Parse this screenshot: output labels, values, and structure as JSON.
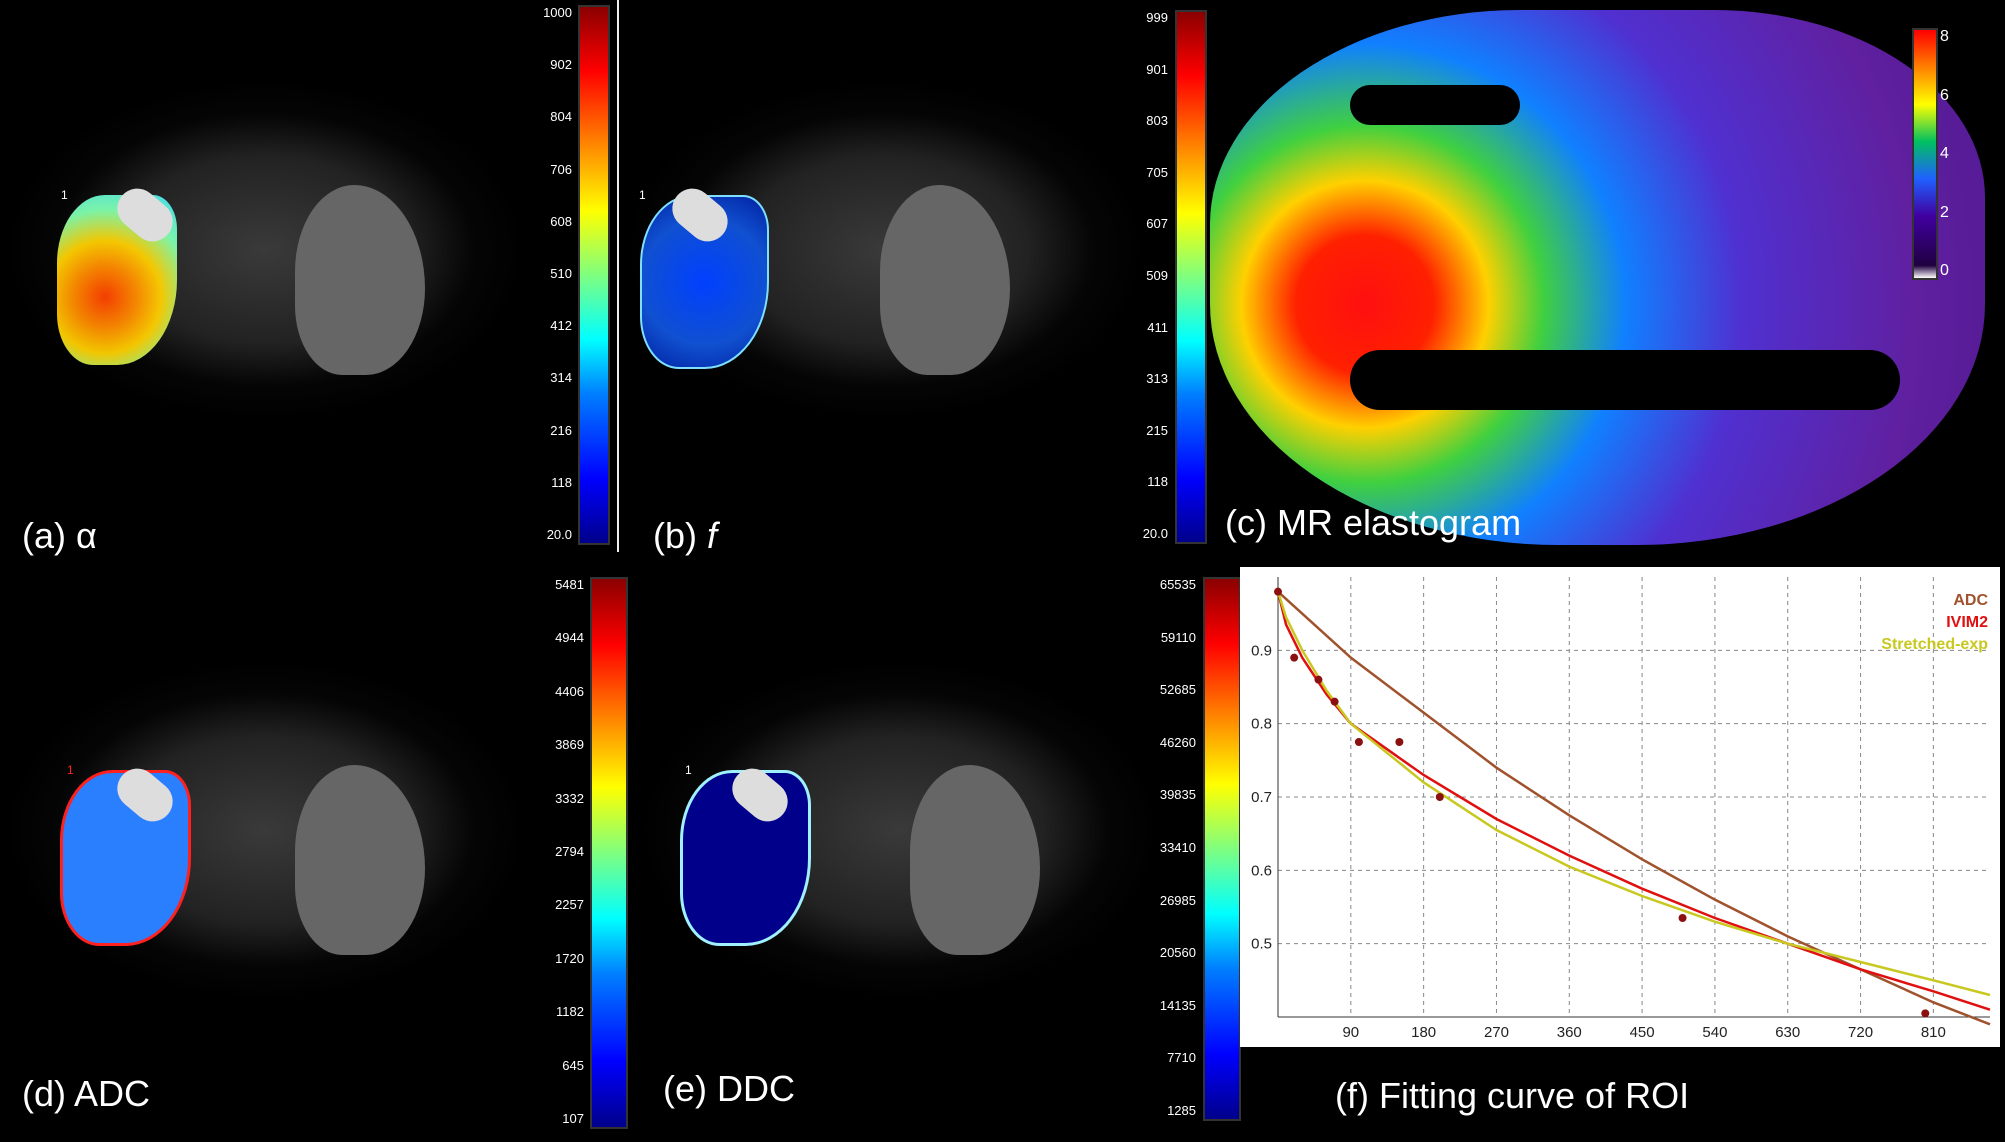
{
  "labels": {
    "a": "(a) α",
    "b_prefix": "(b) ",
    "b_italic": "f",
    "c": "(c) MR elastogram",
    "d": "(d) ADC",
    "e": "(e) DDC",
    "f": "(f) Fitting curve of ROI"
  },
  "roi_markers": {
    "a": "1",
    "b": "1",
    "d": "1",
    "e": "1"
  },
  "colorbars": {
    "a": [
      "1000",
      "902",
      "804",
      "706",
      "608",
      "510",
      "412",
      "314",
      "216",
      "118",
      "20.0"
    ],
    "b": [
      "999",
      "901",
      "803",
      "705",
      "607",
      "509",
      "411",
      "313",
      "215",
      "118",
      "20.0"
    ],
    "c": [
      "8",
      "6",
      "4",
      "2",
      "0"
    ],
    "d": [
      "5481",
      "4944",
      "4406",
      "3869",
      "3332",
      "2794",
      "2257",
      "1720",
      "1182",
      "645",
      "107"
    ],
    "e": [
      "65535",
      "59110",
      "52685",
      "46260",
      "39835",
      "33410",
      "26985",
      "20560",
      "14135",
      "7710",
      "1285"
    ]
  },
  "chart_data": {
    "type": "line",
    "title": "(f) Fitting curve of ROI",
    "xlabel": "",
    "ylabel": "",
    "xlim": [
      0,
      880
    ],
    "ylim": [
      0.4,
      1.0
    ],
    "x_ticks": [
      "90",
      "180",
      "270",
      "360",
      "450",
      "540",
      "630",
      "720",
      "810"
    ],
    "y_ticks": [
      "0.9",
      "0.8",
      "0.7",
      "0.6",
      "0.5"
    ],
    "legend": [
      "ADC",
      "IVIM2",
      "Stretched-exp"
    ],
    "legend_position": "top-right",
    "grid": true,
    "measured_points": {
      "x": [
        0,
        20,
        50,
        70,
        100,
        150,
        200,
        500,
        800
      ],
      "y": [
        0.98,
        0.89,
        0.86,
        0.83,
        0.775,
        0.775,
        0.7,
        0.535,
        0.405
      ]
    },
    "series": [
      {
        "name": "ADC",
        "color": "#a0522d",
        "x": [
          0,
          90,
          180,
          270,
          360,
          450,
          540,
          630,
          720,
          810,
          880
        ],
        "y": [
          0.98,
          0.89,
          0.815,
          0.74,
          0.675,
          0.615,
          0.56,
          0.51,
          0.465,
          0.42,
          0.39
        ]
      },
      {
        "name": "IVIM2",
        "color": "#e01010",
        "x": [
          0,
          10,
          30,
          60,
          90,
          180,
          270,
          360,
          450,
          540,
          630,
          720,
          810,
          880
        ],
        "y": [
          0.98,
          0.935,
          0.89,
          0.84,
          0.8,
          0.73,
          0.67,
          0.62,
          0.575,
          0.535,
          0.5,
          0.465,
          0.435,
          0.41
        ]
      },
      {
        "name": "Stretched-exp",
        "color": "#c8c820",
        "x": [
          0,
          10,
          30,
          60,
          90,
          180,
          270,
          360,
          450,
          540,
          630,
          720,
          810,
          880
        ],
        "y": [
          0.98,
          0.945,
          0.9,
          0.845,
          0.8,
          0.72,
          0.655,
          0.605,
          0.565,
          0.53,
          0.5,
          0.475,
          0.45,
          0.43
        ]
      }
    ]
  }
}
